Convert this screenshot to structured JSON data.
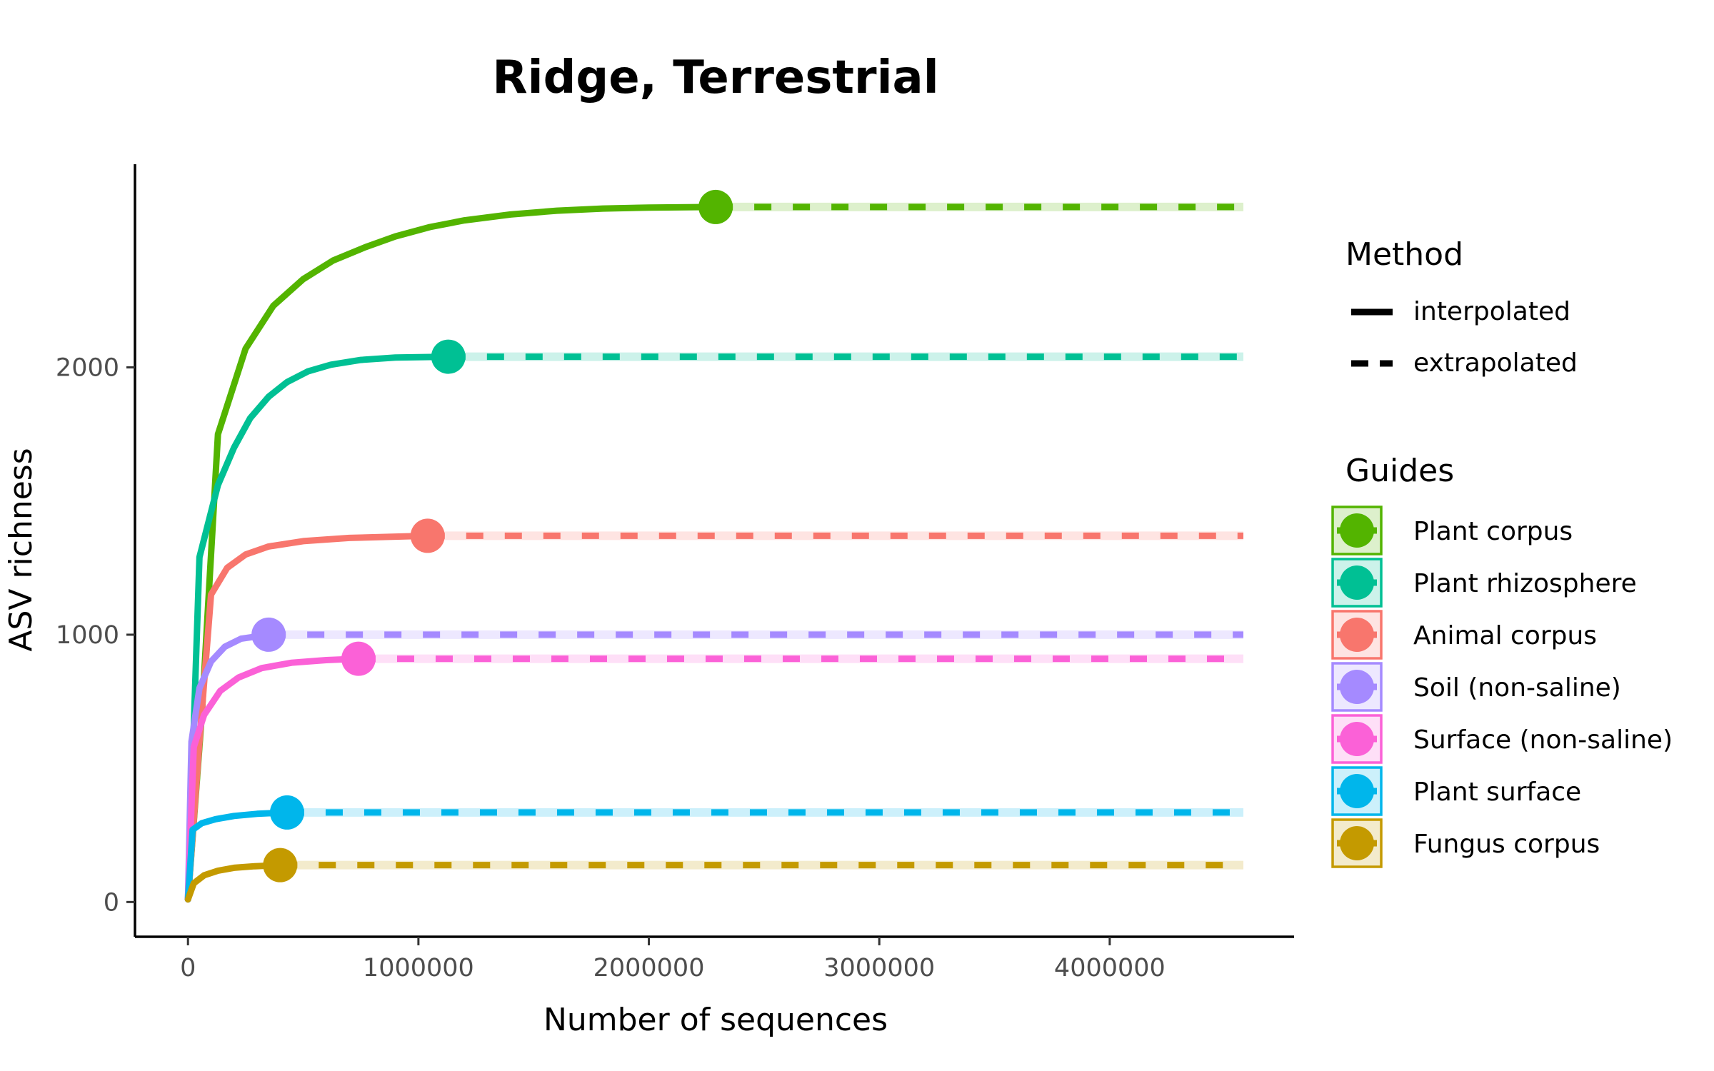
{
  "chart_data": {
    "type": "line",
    "title": "Ridge, Terrestrial",
    "xlabel": "Number of sequences",
    "ylabel": "ASV richness",
    "xlim": [
      -230000,
      4800000
    ],
    "ylim": [
      -130000,
      2760
    ],
    "x_range": [
      -230000,
      4800000
    ],
    "y_range": [
      -130,
      2760
    ],
    "x_ticks": [
      0,
      1000000,
      2000000,
      3000000,
      4000000
    ],
    "x_tick_labels": [
      "0",
      "1000000",
      "2000000",
      "3000000",
      "4000000"
    ],
    "y_ticks": [
      0,
      1000,
      2000
    ],
    "y_tick_labels": [
      "0",
      "1000",
      "2000"
    ],
    "x_max_extrapolated": 4580000,
    "grid": false,
    "legend_position": "right",
    "method_legend": {
      "title": "Method",
      "items": [
        "interpolated",
        "extrapolated"
      ]
    },
    "series_legend_title": "Guides",
    "series": [
      {
        "name": "Plant corpus",
        "color": "#53B400",
        "observed_x": 2290000,
        "observed_y": 2600,
        "interpolated": [
          [
            0,
            10
          ],
          [
            60000,
            700
          ],
          [
            130000,
            1750
          ],
          [
            250000,
            2070
          ],
          [
            370000,
            2230
          ],
          [
            500000,
            2330
          ],
          [
            630000,
            2400
          ],
          [
            770000,
            2450
          ],
          [
            900000,
            2490
          ],
          [
            1050000,
            2525
          ],
          [
            1200000,
            2550
          ],
          [
            1400000,
            2572
          ],
          [
            1600000,
            2586
          ],
          [
            1800000,
            2594
          ],
          [
            2000000,
            2598
          ],
          [
            2290000,
            2600
          ]
        ]
      },
      {
        "name": "Plant rhizosphere",
        "color": "#00C094",
        "observed_x": 1130000,
        "observed_y": 2040,
        "interpolated": [
          [
            0,
            10
          ],
          [
            50000,
            1290
          ],
          [
            130000,
            1560
          ],
          [
            200000,
            1700
          ],
          [
            270000,
            1810
          ],
          [
            350000,
            1890
          ],
          [
            430000,
            1945
          ],
          [
            520000,
            1985
          ],
          [
            620000,
            2010
          ],
          [
            750000,
            2028
          ],
          [
            900000,
            2037
          ],
          [
            1130000,
            2040
          ]
        ]
      },
      {
        "name": "Animal corpus",
        "color": "#F8766D",
        "observed_x": 1040000,
        "observed_y": 1370,
        "interpolated": [
          [
            0,
            10
          ],
          [
            50000,
            600
          ],
          [
            100000,
            1150
          ],
          [
            170000,
            1250
          ],
          [
            250000,
            1300
          ],
          [
            350000,
            1330
          ],
          [
            500000,
            1350
          ],
          [
            700000,
            1362
          ],
          [
            1040000,
            1370
          ]
        ]
      },
      {
        "name": "Soil (non-saline)",
        "color": "#A58AFF",
        "observed_x": 350000,
        "observed_y": 1000,
        "interpolated": [
          [
            0,
            10
          ],
          [
            15000,
            600
          ],
          [
            50000,
            800
          ],
          [
            100000,
            900
          ],
          [
            160000,
            955
          ],
          [
            230000,
            985
          ],
          [
            350000,
            1000
          ]
        ]
      },
      {
        "name": "Surface (non-saline)",
        "color": "#FB61D7",
        "observed_x": 740000,
        "observed_y": 910,
        "interpolated": [
          [
            0,
            10
          ],
          [
            25000,
            580
          ],
          [
            70000,
            700
          ],
          [
            140000,
            790
          ],
          [
            220000,
            840
          ],
          [
            320000,
            875
          ],
          [
            450000,
            895
          ],
          [
            600000,
            905
          ],
          [
            740000,
            910
          ]
        ]
      },
      {
        "name": "Plant surface",
        "color": "#00B6EB",
        "observed_x": 430000,
        "observed_y": 335,
        "interpolated": [
          [
            0,
            10
          ],
          [
            20000,
            270
          ],
          [
            60000,
            295
          ],
          [
            120000,
            310
          ],
          [
            200000,
            322
          ],
          [
            300000,
            330
          ],
          [
            430000,
            335
          ]
        ]
      },
      {
        "name": "Fungus corpus",
        "color": "#C49A00",
        "observed_x": 400000,
        "observed_y": 138,
        "interpolated": [
          [
            0,
            10
          ],
          [
            25000,
            70
          ],
          [
            70000,
            100
          ],
          [
            130000,
            117
          ],
          [
            200000,
            128
          ],
          [
            290000,
            134
          ],
          [
            400000,
            138
          ]
        ]
      }
    ]
  }
}
